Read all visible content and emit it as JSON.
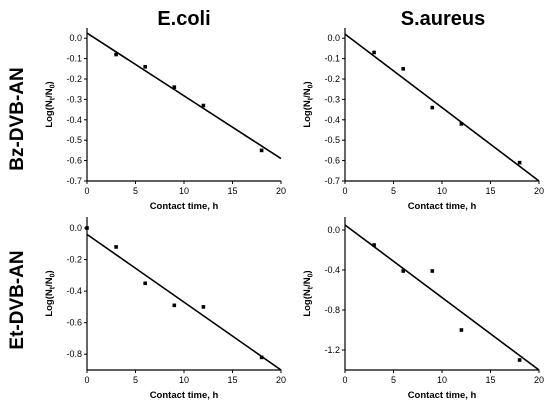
{
  "figure": {
    "column_titles": [
      "E.coli",
      "S.aureus"
    ],
    "row_titles": [
      "Bz-DVB-AN",
      "Et-DVB-AN"
    ]
  },
  "chart_data": [
    {
      "type": "scatter",
      "row": "Bz-DVB-AN",
      "column": "E.coli",
      "xlabel": "Contact time, h",
      "ylabel_parts": {
        "main": "Log(N",
        "sub1": "t",
        "mid": "/N",
        "sub2": "0",
        "end": ")"
      },
      "xlim": [
        0,
        20
      ],
      "ylim": [
        -0.7,
        0.05
      ],
      "xticks": [
        0,
        5,
        10,
        15,
        20
      ],
      "yticks": [
        0.0,
        -0.1,
        -0.2,
        -0.3,
        -0.4,
        -0.5,
        -0.6,
        -0.7
      ],
      "ytick_labels": [
        "0.0",
        "-0.1",
        "-0.2",
        "-0.3",
        "-0.4",
        "-0.5",
        "-0.6",
        "-0.7"
      ],
      "points": {
        "x": [
          3,
          6,
          9,
          12,
          18
        ],
        "y": [
          -0.08,
          -0.14,
          -0.24,
          -0.33,
          -0.55
        ]
      },
      "fit_line": {
        "x": [
          0,
          20
        ],
        "y": [
          0.025,
          -0.59
        ]
      }
    },
    {
      "type": "scatter",
      "row": "Bz-DVB-AN",
      "column": "S.aureus",
      "xlabel": "Contact time, h",
      "ylabel_parts": {
        "main": "Log(N",
        "sub1": "t",
        "mid": "/N",
        "sub2": "0",
        "end": ")"
      },
      "xlim": [
        0,
        20
      ],
      "ylim": [
        -0.7,
        0.05
      ],
      "xticks": [
        0,
        5,
        10,
        15,
        20
      ],
      "yticks": [
        0.0,
        -0.1,
        -0.2,
        -0.3,
        -0.4,
        -0.5,
        -0.6,
        -0.7
      ],
      "ytick_labels": [
        "0.0",
        "-0.1",
        "-0.2",
        "-0.3",
        "-0.4",
        "-0.5",
        "-0.6",
        "-0.7"
      ],
      "points": {
        "x": [
          3,
          6,
          9,
          12,
          18
        ],
        "y": [
          -0.07,
          -0.15,
          -0.34,
          -0.42,
          -0.61
        ]
      },
      "fit_line": {
        "x": [
          0,
          20
        ],
        "y": [
          0.02,
          -0.7
        ]
      }
    },
    {
      "type": "scatter",
      "row": "Et-DVB-AN",
      "column": "E.coli",
      "xlabel": "Contact time, h",
      "ylabel_parts": {
        "main": "Log(N",
        "sub1": "t",
        "mid": "/N",
        "sub2": "0",
        "end": ")"
      },
      "xlim": [
        0,
        20
      ],
      "ylim": [
        -0.9,
        0.07
      ],
      "xticks": [
        0,
        5,
        10,
        15,
        20
      ],
      "yticks": [
        0.0,
        -0.2,
        -0.4,
        -0.6,
        -0.8
      ],
      "ytick_labels": [
        "0.0",
        "-0.2",
        "-0.4",
        "-0.6",
        "-0.8"
      ],
      "points": {
        "x": [
          0,
          3,
          6,
          9,
          12,
          18
        ],
        "y": [
          0.0,
          -0.12,
          -0.35,
          -0.49,
          -0.5,
          -0.82
        ]
      },
      "fit_line": {
        "x": [
          0,
          20
        ],
        "y": [
          -0.04,
          -0.9
        ]
      }
    },
    {
      "type": "scatter",
      "row": "Et-DVB-AN",
      "column": "S.aureus",
      "xlabel": "Contact time, h",
      "ylabel_parts": {
        "main": "Log(N",
        "sub1": "t",
        "mid": "/N",
        "sub2": "0",
        "end": ")"
      },
      "xlim": [
        0,
        20
      ],
      "ylim": [
        -1.4,
        0.13
      ],
      "xticks": [
        0,
        5,
        10,
        15,
        20
      ],
      "yticks": [
        0.0,
        -0.4,
        -0.8,
        -1.2
      ],
      "ytick_labels": [
        "0.0",
        "-0.4",
        "-0.8",
        "-1.2"
      ],
      "points": {
        "x": [
          3,
          6,
          9,
          12,
          18
        ],
        "y": [
          -0.15,
          -0.41,
          -0.41,
          -1.0,
          -1.3
        ]
      },
      "fit_line": {
        "x": [
          0,
          20
        ],
        "y": [
          0.05,
          -1.4
        ]
      }
    }
  ]
}
